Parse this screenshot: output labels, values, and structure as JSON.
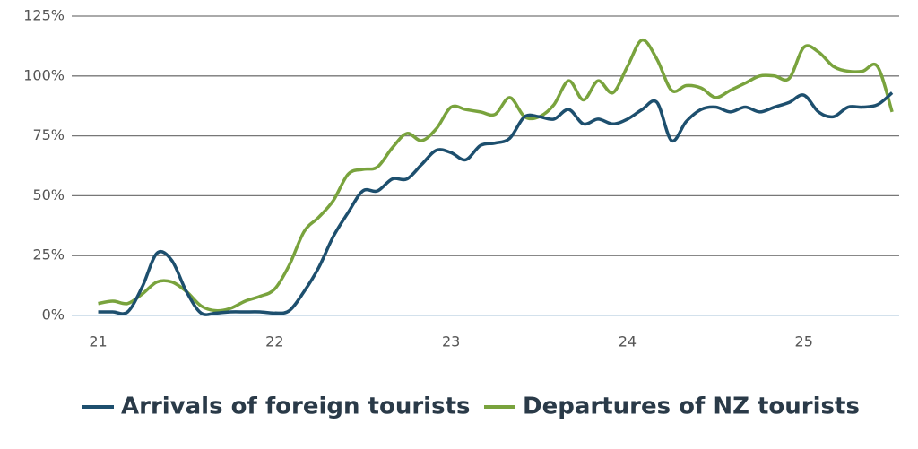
{
  "chart_data": {
    "type": "line",
    "x": [
      21,
      21.083,
      21.167,
      21.25,
      21.333,
      21.417,
      21.5,
      21.583,
      21.667,
      21.75,
      21.833,
      21.917,
      22,
      22.083,
      22.167,
      22.25,
      22.333,
      22.417,
      22.5,
      22.583,
      22.667,
      22.75,
      22.833,
      22.917,
      23,
      23.083,
      23.167,
      23.25,
      23.333,
      23.417,
      23.5,
      23.583,
      23.667,
      23.75,
      23.833,
      23.917,
      24,
      24.083,
      24.167,
      24.25,
      24.333,
      24.417,
      24.5,
      24.583,
      24.667,
      24.75,
      24.833,
      24.917,
      25,
      25.083,
      25.167,
      25.25,
      25.333,
      25.417,
      25.5
    ],
    "series": [
      {
        "name": "Arrivals of foreign tourists",
        "color": "#1d4f6e",
        "values": [
          1.5,
          1.5,
          1.5,
          12,
          26,
          23,
          10,
          1,
          1,
          1.5,
          1.5,
          1.5,
          1,
          2,
          10,
          20,
          33,
          43,
          52,
          52,
          57,
          57,
          63,
          69,
          68,
          65,
          71,
          72,
          74,
          83,
          83,
          82,
          86,
          80,
          82,
          80,
          82,
          86,
          89,
          73,
          81,
          86,
          87,
          85,
          87,
          85,
          87,
          89,
          92,
          85,
          83,
          87,
          87,
          88,
          93
        ]
      },
      {
        "name": "Departures of NZ tourists",
        "color": "#79a33d",
        "values": [
          5,
          6,
          5,
          9,
          14,
          14,
          10,
          4,
          2,
          3,
          6,
          8,
          11,
          21,
          35,
          41,
          48,
          59,
          61,
          62,
          70,
          76,
          73,
          78,
          87,
          86,
          85,
          84,
          91,
          83,
          83,
          88,
          98,
          90,
          98,
          93,
          104,
          115,
          107,
          94,
          96,
          95,
          91,
          94,
          97,
          100,
          100,
          99,
          112,
          110,
          104,
          102,
          102,
          104,
          85
        ]
      }
    ],
    "xlim": [
      20.85,
      25.54
    ],
    "xticks": [
      21,
      22,
      23,
      24,
      25
    ],
    "ylim": [
      0,
      125
    ],
    "yticks": [
      {
        "value": 0,
        "label": "0%"
      },
      {
        "value": 25,
        "label": "25%"
      },
      {
        "value": 50,
        "label": "50%"
      },
      {
        "value": 75,
        "label": "75%"
      },
      {
        "value": 100,
        "label": "100%"
      },
      {
        "value": 125,
        "label": "125%"
      }
    ],
    "grid": true,
    "legend": "bottom"
  }
}
